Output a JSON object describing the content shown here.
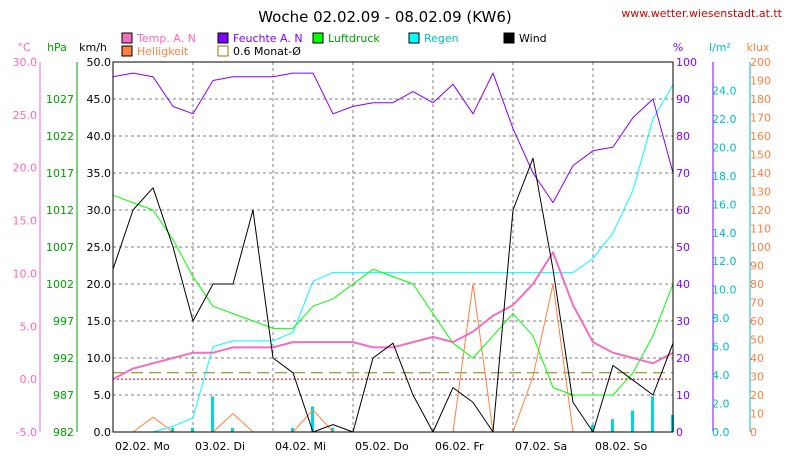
{
  "title": "Woche 02.02.09 - 08.02.09 (KW6)",
  "source": "www.wetter.wiesenstadt.at.tt",
  "chart_data": {
    "type": "line",
    "x": [
      0,
      0.25,
      0.5,
      0.75,
      1,
      1.25,
      1.5,
      1.75,
      2,
      2.25,
      2.5,
      2.75,
      3,
      3.25,
      3.5,
      3.75,
      4,
      4.25,
      4.5,
      4.75,
      5,
      5.25,
      5.5,
      5.75,
      6,
      6.25,
      6.5,
      6.75,
      7
    ],
    "x_tick_labels": [
      "02.02.  Mo",
      "03.02.  Di",
      "04.02.  Mi",
      "05.02.  Do",
      "06.02.  Fr",
      "07.02.  Sa",
      "08.02.  So"
    ],
    "x_tick_positions": [
      0,
      1,
      2,
      3,
      4,
      5,
      6
    ],
    "xlim": [
      0,
      7
    ],
    "grid": true,
    "legend_position": "top",
    "axes": [
      {
        "id": "temp",
        "label": "°C",
        "color": "#ff69b4",
        "side": "left",
        "min": -5,
        "max": 30,
        "ticks": [
          "-5.0",
          "0.0",
          "5.0",
          "10.0",
          "15.0",
          "20.0",
          "25.0",
          "30.0"
        ]
      },
      {
        "id": "press",
        "label": "hPa",
        "color": "#00a000",
        "side": "left",
        "min": 982,
        "max": 1032,
        "ticks": [
          "982",
          "987",
          "992",
          "997",
          "1002",
          "1007",
          "1012",
          "1017",
          "1022",
          "1027"
        ]
      },
      {
        "id": "wind",
        "label": "km/h",
        "color": "#000000",
        "side": "left",
        "min": 0,
        "max": 50,
        "ticks": [
          "0.0",
          "5.0",
          "10.0",
          "15.0",
          "20.0",
          "25.0",
          "30.0",
          "35.0",
          "40.0",
          "45.0",
          "50.0"
        ]
      },
      {
        "id": "hum",
        "label": "%",
        "color": "#8000ff",
        "side": "right",
        "min": 0,
        "max": 100,
        "ticks": [
          "0",
          "10",
          "20",
          "30",
          "40",
          "50",
          "60",
          "70",
          "80",
          "90",
          "100"
        ]
      },
      {
        "id": "rain",
        "label": "l/m²",
        "color": "#00c0c0",
        "side": "right",
        "min": 0,
        "max": 26,
        "ticks": [
          "0.0",
          "2.0",
          "4.0",
          "6.0",
          "8.0",
          "10.0",
          "12.0",
          "14.0",
          "16.0",
          "18.0",
          "20.0",
          "22.0",
          "24.0"
        ]
      },
      {
        "id": "lux",
        "label": "klux",
        "color": "#ff8040",
        "side": "right",
        "min": 0,
        "max": 200,
        "ticks": [
          "0",
          "10",
          "20",
          "30",
          "40",
          "50",
          "60",
          "70",
          "80",
          "90",
          "100",
          "110",
          "120",
          "130",
          "140",
          "150",
          "160",
          "170",
          "180",
          "190",
          "200"
        ]
      }
    ],
    "series": [
      {
        "name": "Temp. A. N",
        "axis": "temp",
        "color": "#f070c0",
        "width": 2,
        "values": [
          0,
          1,
          1.5,
          2,
          2.5,
          2.5,
          3,
          3,
          3,
          3.5,
          3.5,
          3.5,
          3.5,
          3,
          3,
          3.5,
          4,
          3.5,
          4.5,
          6,
          7,
          9,
          12,
          7,
          3.5,
          2.5,
          2,
          1.5,
          2.5
        ]
      },
      {
        "name": "Feuchte A. N",
        "axis": "hum",
        "color": "#8000ff",
        "width": 1,
        "values": [
          96,
          97,
          96,
          88,
          86,
          95,
          96,
          96,
          96,
          97,
          97,
          86,
          88,
          89,
          89,
          92,
          89,
          94,
          86,
          97,
          82,
          70,
          62,
          72,
          76,
          77,
          85,
          90,
          70
        ]
      },
      {
        "name": "Luftdruck",
        "axis": "press",
        "color": "#00ff00",
        "width": 1,
        "values": [
          1014,
          1013,
          1012,
          1008,
          1003,
          999,
          998,
          997,
          996,
          996,
          999,
          1000,
          1002,
          1004,
          1003,
          1002,
          998,
          994,
          992,
          995,
          998,
          995,
          988,
          987,
          987,
          987,
          990,
          995,
          1002
        ]
      },
      {
        "name": "Regen",
        "axis": "rain",
        "color": "#00ffff",
        "width": 1,
        "values": [
          0,
          0,
          0,
          0.4,
          1,
          6,
          6.4,
          6.4,
          6.4,
          7,
          10.6,
          11.2,
          11.2,
          11.2,
          11.2,
          11.2,
          11.2,
          11.2,
          11.2,
          11.2,
          11.2,
          11.2,
          11.2,
          11.2,
          12.2,
          14,
          17,
          22,
          24.4
        ]
      },
      {
        "name": "Wind",
        "axis": "wind",
        "color": "#000000",
        "width": 1,
        "values": [
          22,
          30,
          33,
          25,
          15,
          20,
          20,
          30,
          10,
          8,
          0,
          1,
          0,
          10,
          12,
          5,
          0,
          6,
          4,
          0,
          30,
          37,
          22,
          4,
          0,
          9,
          7,
          5,
          12
        ]
      },
      {
        "name": "Helligkeit",
        "axis": "lux",
        "color": "#ff8040",
        "width": 1,
        "values": [
          0,
          0,
          8,
          0,
          0,
          0,
          10,
          0,
          0,
          0,
          12,
          0,
          0,
          0,
          0,
          0,
          0,
          0,
          80,
          0,
          0,
          30,
          80,
          0,
          0,
          0,
          0,
          0,
          0
        ]
      }
    ],
    "averages": [
      {
        "name": "0.6 Monat-Ø",
        "axis": "temp",
        "value": 0.6,
        "color": "#808000",
        "dash": "12,6"
      },
      {
        "name": "",
        "axis": "temp",
        "value": 0,
        "color": "#c00000",
        "dash": "2,2"
      }
    ]
  }
}
